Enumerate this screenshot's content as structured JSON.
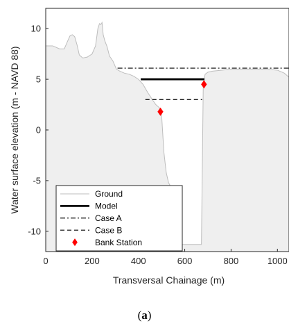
{
  "caption": {
    "open": "(",
    "letter": "a",
    "close": ")"
  },
  "chart_data": {
    "type": "line",
    "title": "",
    "xlabel": "Transversal Chainage (m)",
    "ylabel": "Water surface elevation (m - NAVD 88)",
    "xlim": [
      0,
      1050
    ],
    "ylim": [
      -12,
      12
    ],
    "xticks": [
      0,
      200,
      400,
      600,
      800,
      1000
    ],
    "yticks": [
      -10,
      -5,
      0,
      5,
      10
    ],
    "xtick_labels": [
      "0",
      "200",
      "400",
      "600",
      "800",
      "1000"
    ],
    "ytick_labels": [
      "-10",
      "-5",
      "0",
      "5",
      "10"
    ],
    "grid": false,
    "legend_position": "bottom-left",
    "series": [
      {
        "name": "Ground",
        "style": "area",
        "color": "#bdbdbd",
        "fill": "#efefef",
        "x": [
          0,
          30,
          60,
          80,
          95,
          105,
          115,
          125,
          135,
          145,
          160,
          180,
          200,
          215,
          225,
          232,
          238,
          243,
          248,
          255,
          265,
          275,
          290,
          305,
          320,
          340,
          360,
          380,
          400,
          420,
          440,
          460,
          475,
          490,
          500,
          510,
          520,
          530,
          545,
          560,
          575,
          585,
          588,
          600,
          620,
          640,
          660,
          672,
          680,
          688,
          700,
          720,
          760,
          800,
          850,
          900,
          950,
          1000,
          1030,
          1050
        ],
        "y": [
          8.3,
          8.3,
          8.0,
          8.0,
          8.8,
          9.3,
          9.4,
          9.2,
          8.4,
          7.4,
          7.1,
          7.2,
          7.5,
          8.3,
          10.0,
          10.5,
          10.4,
          10.6,
          9.4,
          8.8,
          8.2,
          7.3,
          6.8,
          6.0,
          5.8,
          5.6,
          5.5,
          5.3,
          5.0,
          4.5,
          3.7,
          3.0,
          2.5,
          2.2,
          1.5,
          -2.2,
          -4.2,
          -5.2,
          -5.8,
          -6.2,
          -6.6,
          -6.8,
          -11.3,
          -11.3,
          -11.3,
          -11.3,
          -11.3,
          -11.3,
          4.6,
          5.5,
          5.7,
          5.8,
          5.9,
          6.0,
          6.0,
          6.0,
          6.0,
          5.9,
          5.6,
          5.2
        ]
      },
      {
        "name": "Model",
        "style": "solid",
        "color": "#000000",
        "width": 2.8,
        "x": [
          410,
          685
        ],
        "y": [
          5.0,
          5.0
        ]
      },
      {
        "name": "Case A",
        "style": "dashdot",
        "color": "#000000",
        "width": 1.2,
        "x": [
          310,
          1050
        ],
        "y": [
          6.1,
          6.1
        ]
      },
      {
        "name": "Case B",
        "style": "dashed",
        "color": "#000000",
        "width": 1.2,
        "x": [
          430,
          675
        ],
        "y": [
          3.0,
          3.0
        ]
      },
      {
        "name": "Bank Station",
        "style": "marker",
        "color": "#ff0000",
        "x": [
          495,
          683
        ],
        "y": [
          1.8,
          4.5
        ]
      }
    ]
  }
}
